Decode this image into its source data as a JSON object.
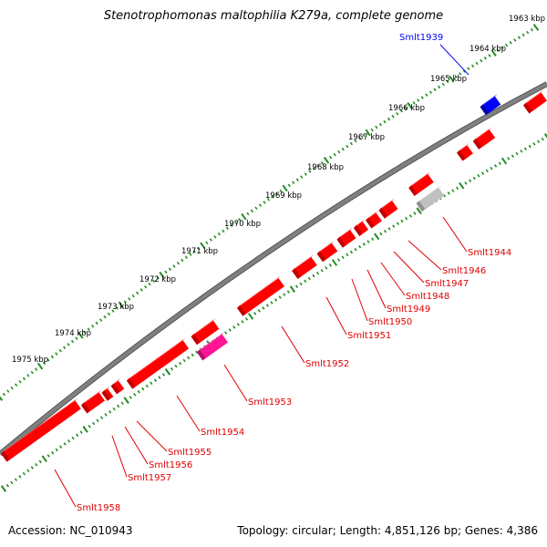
{
  "title": "Stenotrophomonas maltophilia K279a, complete genome",
  "footer": {
    "accession_label": "Accession:",
    "accession": "NC_010943",
    "topology_label": "Topology:",
    "topology": "circular;",
    "length_label": "Length:",
    "length": "4,851,126 bp;",
    "genes_label": "Genes:",
    "genes": "4,386"
  },
  "colors": {
    "gene_red": "#ff0000",
    "gene_blue": "#0000ff",
    "gene_magenta": "#ff1493",
    "gene_gray": "#c0c0c0",
    "backbone": "#808080",
    "ticks": "#228b22"
  },
  "ticks": [
    "1963 kbp",
    "1964 kbp",
    "1965 kbp",
    "1966 kbp",
    "1967 kbp",
    "1968 kbp",
    "1969 kbp",
    "1970 kbp",
    "1971 kbp",
    "1972 kbp",
    "1973 kbp",
    "1974 kbp",
    "1975 kbp"
  ],
  "labels": [
    {
      "name": "Smlt1939",
      "color": "blue"
    },
    {
      "name": "Smlt1944",
      "color": "red"
    },
    {
      "name": "Smlt1946",
      "color": "red"
    },
    {
      "name": "Smlt1947",
      "color": "red"
    },
    {
      "name": "Smlt1948",
      "color": "red"
    },
    {
      "name": "Smlt1949",
      "color": "red"
    },
    {
      "name": "Smlt1950",
      "color": "red"
    },
    {
      "name": "Smlt1951",
      "color": "red"
    },
    {
      "name": "Smlt1952",
      "color": "red"
    },
    {
      "name": "Smlt1953",
      "color": "red"
    },
    {
      "name": "Smlt1954",
      "color": "red"
    },
    {
      "name": "Smlt1955",
      "color": "red"
    },
    {
      "name": "Smlt1956",
      "color": "red"
    },
    {
      "name": "Smlt1957",
      "color": "red"
    },
    {
      "name": "Smlt1958",
      "color": "red"
    }
  ]
}
